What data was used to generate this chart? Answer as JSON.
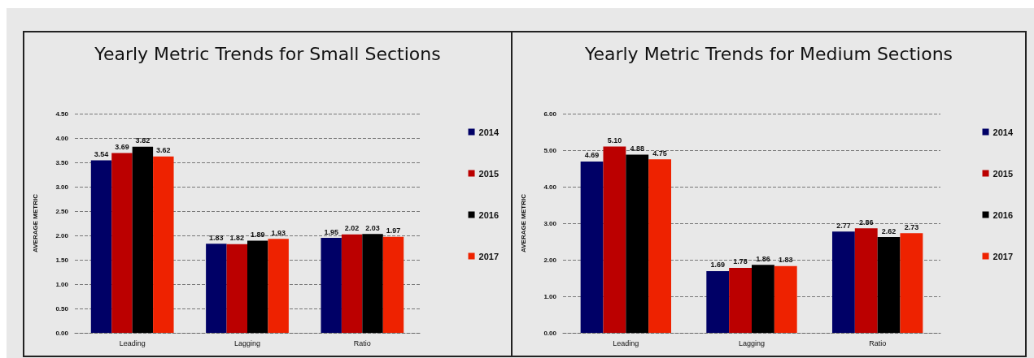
{
  "chart_data": [
    {
      "type": "bar",
      "title": "Yearly Metric Trends for Small Sections",
      "ylabel": "AVERAGE METRIC",
      "categories": [
        "Leading",
        "Lagging",
        "Ratio"
      ],
      "series": [
        {
          "name": "2014",
          "color": "#000066",
          "values": [
            3.54,
            1.83,
            1.95
          ],
          "value_labels": [
            "3.54",
            "1.83",
            "1.95"
          ]
        },
        {
          "name": "2015",
          "color": "#bb0000",
          "values": [
            3.69,
            1.82,
            2.02
          ],
          "value_labels": [
            "3.69",
            "1.82",
            "2.02"
          ]
        },
        {
          "name": "2016",
          "color": "#000000",
          "values": [
            3.82,
            1.89,
            2.03
          ],
          "value_labels": [
            "3.82",
            "1.89",
            "2.03"
          ]
        },
        {
          "name": "2017",
          "color": "#ee2200",
          "values": [
            3.62,
            1.93,
            1.97
          ],
          "value_labels": [
            "3.62",
            "1.93",
            "1.97"
          ]
        }
      ],
      "ylim": [
        0,
        4.5
      ],
      "yticks": [
        {
          "value": 0,
          "label": "0.00"
        },
        {
          "value": 0.5,
          "label": "0.50"
        },
        {
          "value": 1,
          "label": "1.00"
        },
        {
          "value": 1.5,
          "label": "1.50"
        },
        {
          "value": 2,
          "label": "2.00"
        },
        {
          "value": 2.5,
          "label": "2.50"
        },
        {
          "value": 3,
          "label": "3.00"
        },
        {
          "value": 3.5,
          "label": "3.50"
        },
        {
          "value": 4,
          "label": "4.00"
        },
        {
          "value": 4.5,
          "label": "4.50"
        }
      ],
      "grid": "y",
      "legend": "right"
    },
    {
      "type": "bar",
      "title": "Yearly Metric Trends for Medium Sections",
      "ylabel": "AVERAGE METRIC",
      "categories": [
        "Leading",
        "Lagging",
        "Ratio"
      ],
      "series": [
        {
          "name": "2014",
          "color": "#000066",
          "values": [
            4.69,
            1.69,
            2.77
          ],
          "value_labels": [
            "4.69",
            "1.69",
            "2.77"
          ]
        },
        {
          "name": "2015",
          "color": "#bb0000",
          "values": [
            5.1,
            1.78,
            2.86
          ],
          "value_labels": [
            "5.10",
            "1.78",
            "2.86"
          ]
        },
        {
          "name": "2016",
          "color": "#000000",
          "values": [
            4.88,
            1.86,
            2.62
          ],
          "value_labels": [
            "4.88",
            "1.86",
            "2.62"
          ]
        },
        {
          "name": "2017",
          "color": "#ee2200",
          "values": [
            4.75,
            1.83,
            2.73
          ],
          "value_labels": [
            "4.75",
            "1.83",
            "2.73"
          ]
        }
      ],
      "ylim": [
        0,
        6
      ],
      "yticks": [
        {
          "value": 0,
          "label": "0.00"
        },
        {
          "value": 1,
          "label": "1.00"
        },
        {
          "value": 2,
          "label": "2.00"
        },
        {
          "value": 3,
          "label": "3.00"
        },
        {
          "value": 4,
          "label": "4.00"
        },
        {
          "value": 5,
          "label": "5.00"
        },
        {
          "value": 6,
          "label": "6.00"
        }
      ],
      "grid": "y",
      "legend": "right"
    }
  ]
}
